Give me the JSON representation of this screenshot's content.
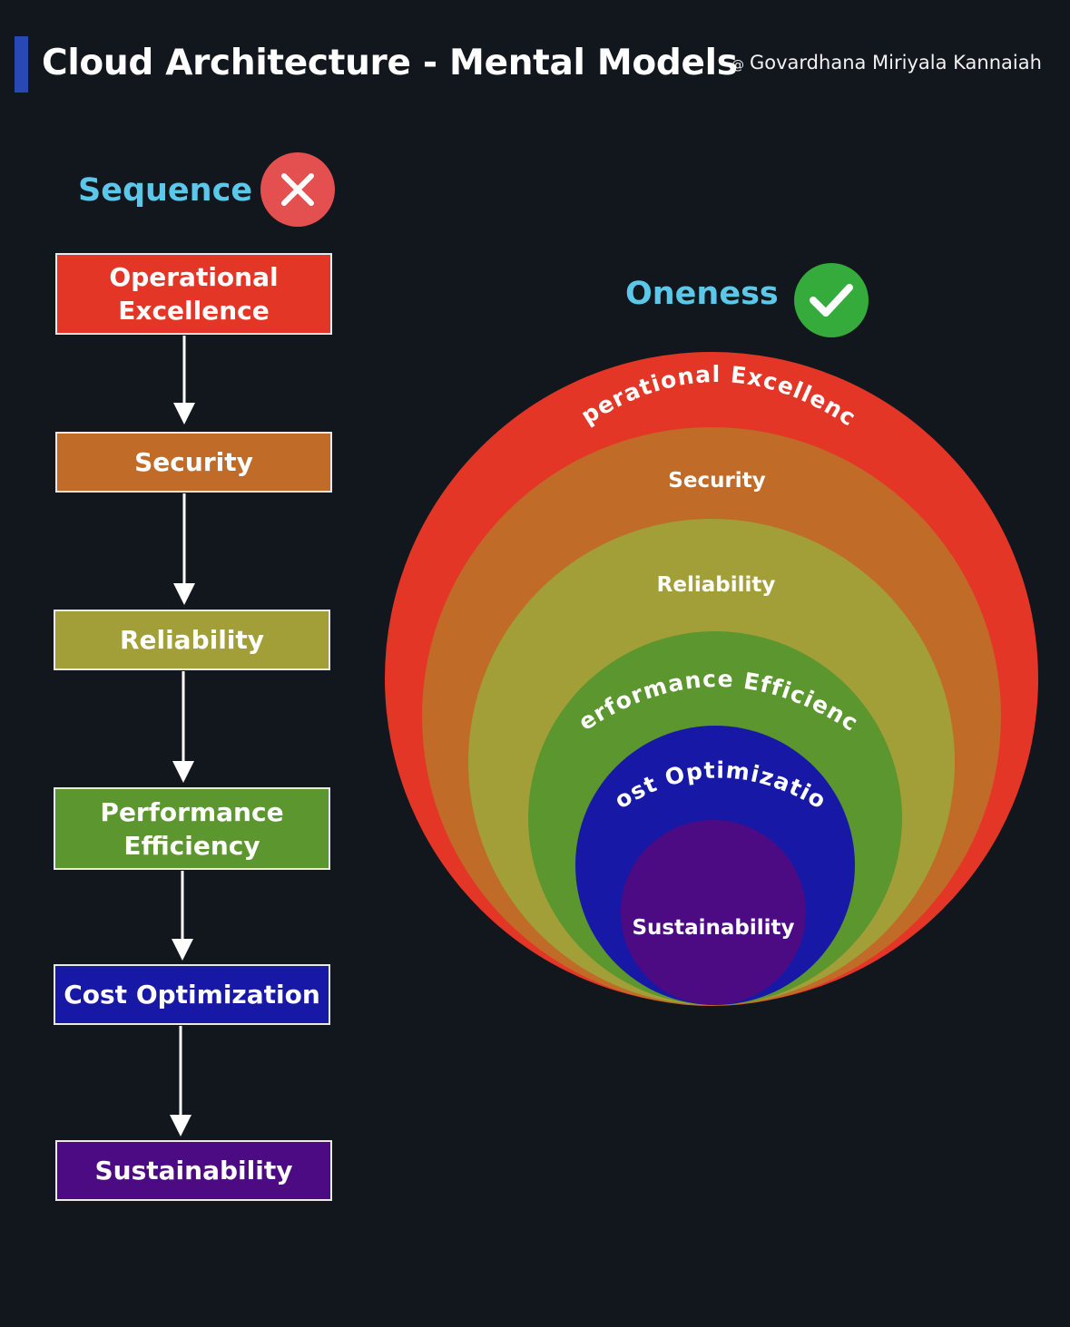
{
  "header": {
    "title": "Cloud Architecture - Mental Models",
    "author_symbol": "@",
    "author": "Govardhana Miriyala Kannaiah"
  },
  "sequence": {
    "label": "Sequence",
    "badge_icon": "close-icon",
    "badge_color": "#e44f4f",
    "steps": [
      {
        "label": "Operational\nExcellence",
        "color": "#e43627"
      },
      {
        "label": "Security",
        "color": "#c16b28"
      },
      {
        "label": "Reliability",
        "color": "#a29f38"
      },
      {
        "label": "Performance\nEfficiency",
        "color": "#5b962e"
      },
      {
        "label": "Cost Optimization",
        "color": "#1719a6"
      },
      {
        "label": "Sustainability",
        "color": "#4c0a83"
      }
    ]
  },
  "oneness": {
    "label": "Oneness",
    "badge_icon": "check-icon",
    "badge_color": "#34ab3a",
    "layers": [
      {
        "label": "Operational Excellence",
        "color": "#e43627"
      },
      {
        "label": "Security",
        "color": "#c16b28"
      },
      {
        "label": "Reliability",
        "color": "#a29f38"
      },
      {
        "label": "Performance Efficiency",
        "color": "#5b962e"
      },
      {
        "label": "Cost Optimization",
        "color": "#1719a6"
      },
      {
        "label": "Sustainability",
        "color": "#4c0a83"
      }
    ]
  }
}
